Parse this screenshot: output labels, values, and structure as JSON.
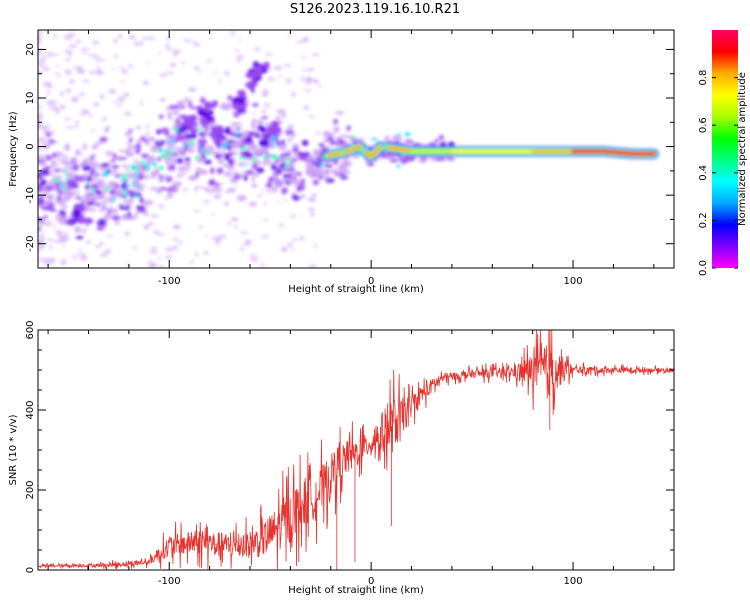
{
  "title": "S126.2023.119.16.10.R21",
  "colors": {
    "snr_line": "#e8312c",
    "spectrogram_low": "#d9b6f7",
    "spectrogram_high": "#ff0000"
  },
  "chart_data": [
    {
      "type": "heatmap",
      "xlabel": "Height of straight line (km)",
      "ylabel": "Frequency (Hz)",
      "xlim": [
        -165,
        150
      ],
      "ylim": [
        -25,
        24
      ],
      "xticks": [
        -100,
        0,
        100
      ],
      "yticks": [
        -20,
        -10,
        0,
        10,
        20
      ],
      "colorbar": {
        "label": "Normalized spectral amplitude",
        "range": [
          0,
          1
        ],
        "ticks": [
          "0.0",
          "0.2",
          "0.4",
          "0.6",
          "0.8"
        ],
        "colormap": [
          "#ff00ff",
          "#7f00ff",
          "#0000ff",
          "#00aaff",
          "#00ffff",
          "#00ff80",
          "#00ff00",
          "#aaff00",
          "#ffff00",
          "#ffaa00",
          "#ff0000",
          "#ff0066"
        ]
      },
      "ridge": [
        {
          "x": -160,
          "y": -8,
          "a": 0.35
        },
        {
          "x": -145,
          "y": -8,
          "a": 0.45
        },
        {
          "x": -130,
          "y": -8,
          "a": 0.45
        },
        {
          "x": -115,
          "y": -6,
          "a": 0.4
        },
        {
          "x": -105,
          "y": -2,
          "a": 0.4
        },
        {
          "x": -95,
          "y": 0,
          "a": 0.35
        },
        {
          "x": -80,
          "y": 0,
          "a": 0.35
        },
        {
          "x": -65,
          "y": 0,
          "a": 0.4
        },
        {
          "x": -50,
          "y": 0,
          "a": 0.4
        },
        {
          "x": -40,
          "y": -4,
          "a": 0.4
        },
        {
          "x": -30,
          "y": -6,
          "a": 0.4
        },
        {
          "x": -22,
          "y": -2,
          "a": 0.45
        },
        {
          "x": -12,
          "y": -1,
          "a": 0.5
        },
        {
          "x": -6,
          "y": 0,
          "a": 0.6
        },
        {
          "x": 0,
          "y": -2,
          "a": 0.45
        },
        {
          "x": 5,
          "y": 0,
          "a": 0.5
        },
        {
          "x": 20,
          "y": -1,
          "a": 0.6
        },
        {
          "x": 40,
          "y": -1,
          "a": 0.65
        },
        {
          "x": 60,
          "y": -1,
          "a": 0.65
        },
        {
          "x": 80,
          "y": -1,
          "a": 0.7
        },
        {
          "x": 100,
          "y": -1,
          "a": 0.85
        },
        {
          "x": 115,
          "y": -1,
          "a": 0.9
        },
        {
          "x": 130,
          "y": -1.5,
          "a": 0.85
        },
        {
          "x": 140,
          "y": -1.5,
          "a": 0.9
        }
      ],
      "blobs": [
        {
          "x": -90,
          "y": 4,
          "a": 0.3
        },
        {
          "x": -82,
          "y": 7,
          "a": 0.25
        },
        {
          "x": -65,
          "y": 9,
          "a": 0.3
        },
        {
          "x": -58,
          "y": 14,
          "a": 0.3
        },
        {
          "x": -55,
          "y": 16,
          "a": 0.25
        },
        {
          "x": -75,
          "y": 3,
          "a": 0.3
        },
        {
          "x": -50,
          "y": 3,
          "a": 0.3
        },
        {
          "x": -145,
          "y": -14,
          "a": 0.25
        }
      ]
    },
    {
      "type": "line",
      "xlabel": "Height of straight line (km)",
      "ylabel": "SNR (10 * v/v)",
      "xlim": [
        -165,
        150
      ],
      "ylim": [
        0,
        600
      ],
      "xticks": [
        -100,
        0,
        100
      ],
      "yticks": [
        0,
        200,
        400,
        600
      ],
      "trend": [
        {
          "x": -165,
          "y": 10
        },
        {
          "x": -130,
          "y": 12
        },
        {
          "x": -110,
          "y": 20
        },
        {
          "x": -100,
          "y": 60
        },
        {
          "x": -85,
          "y": 70
        },
        {
          "x": -70,
          "y": 60
        },
        {
          "x": -55,
          "y": 70
        },
        {
          "x": -45,
          "y": 110
        },
        {
          "x": -35,
          "y": 160
        },
        {
          "x": -25,
          "y": 200
        },
        {
          "x": -15,
          "y": 270
        },
        {
          "x": -5,
          "y": 300
        },
        {
          "x": 5,
          "y": 340
        },
        {
          "x": 15,
          "y": 380
        },
        {
          "x": 25,
          "y": 440
        },
        {
          "x": 35,
          "y": 480
        },
        {
          "x": 50,
          "y": 490
        },
        {
          "x": 70,
          "y": 495
        },
        {
          "x": 85,
          "y": 500
        },
        {
          "x": 100,
          "y": 500
        },
        {
          "x": 130,
          "y": 500
        },
        {
          "x": 150,
          "y": 500
        }
      ],
      "noise": [
        {
          "x": -165,
          "amp": 6
        },
        {
          "x": -110,
          "amp": 15
        },
        {
          "x": -100,
          "amp": 60
        },
        {
          "x": -80,
          "amp": 70
        },
        {
          "x": -60,
          "amp": 70
        },
        {
          "x": -40,
          "amp": 150
        },
        {
          "x": -20,
          "amp": 120
        },
        {
          "x": 0,
          "amp": 60
        },
        {
          "x": 10,
          "amp": 160
        },
        {
          "x": 20,
          "amp": 60
        },
        {
          "x": 40,
          "amp": 20
        },
        {
          "x": 70,
          "amp": 30
        },
        {
          "x": 88,
          "amp": 150
        },
        {
          "x": 100,
          "amp": 20
        },
        {
          "x": 150,
          "amp": 10
        }
      ],
      "spikes": [
        {
          "x": 88,
          "y": 600
        },
        {
          "x": 88.5,
          "y": 350
        },
        {
          "x": 10,
          "y": 110
        },
        {
          "x": -8,
          "y": 20
        },
        {
          "x": -17,
          "y": 0
        }
      ]
    }
  ]
}
